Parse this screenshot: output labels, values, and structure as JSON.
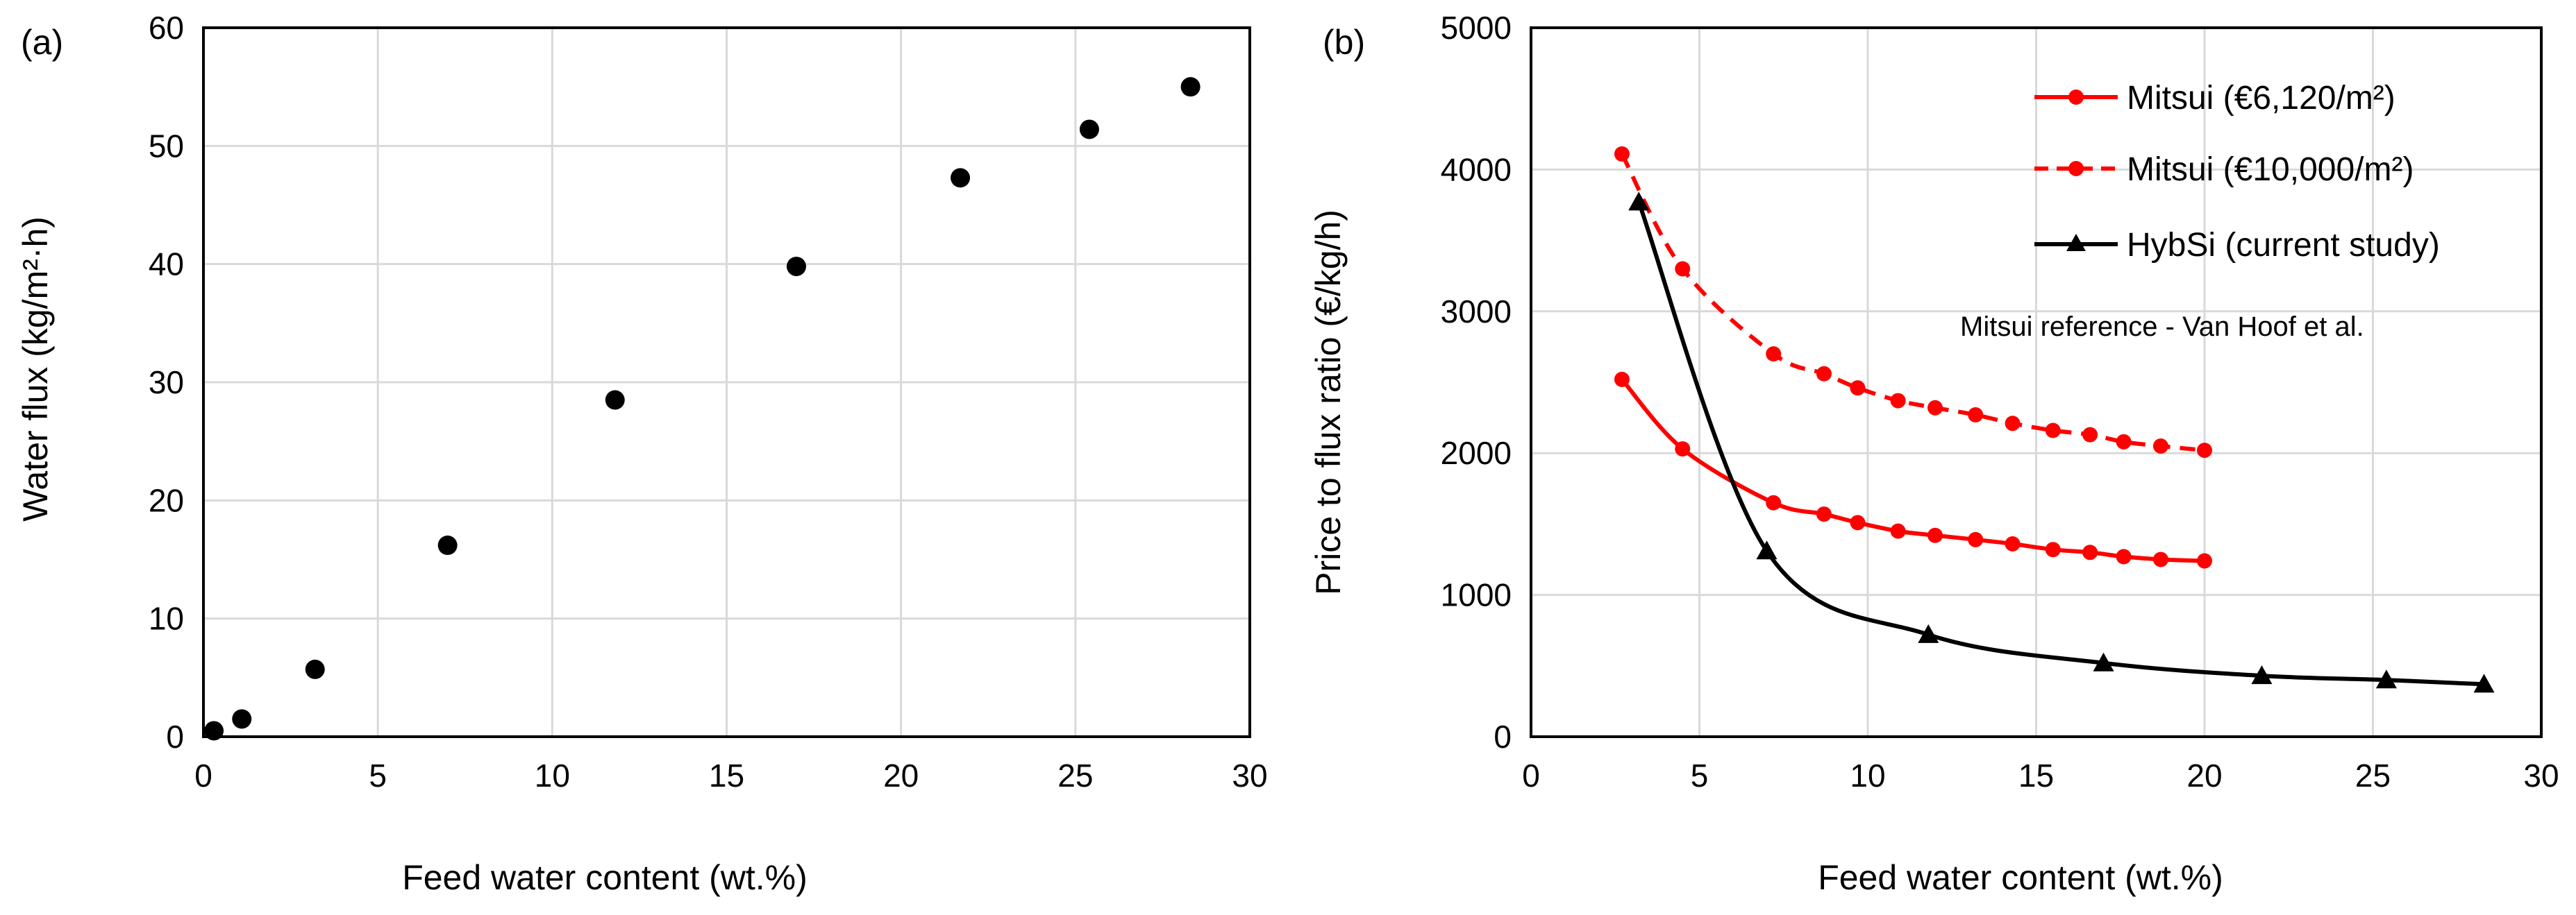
{
  "chart_data": [
    {
      "type": "scatter",
      "panel_label": "(a)",
      "xlabel": "Feed water content (wt.%)",
      "ylabel": "Water flux  (kg/m²·h)",
      "xlim": [
        0,
        30
      ],
      "ylim": [
        0,
        60
      ],
      "x_ticks": [
        "0",
        "5",
        "10",
        "15",
        "20",
        "25",
        "30"
      ],
      "y_ticks": [
        "0",
        "10",
        "20",
        "30",
        "40",
        "50",
        "60"
      ],
      "grid": true,
      "series": [
        {
          "name": "Water flux",
          "color": "#000000",
          "marker": "circle",
          "x": [
            0.3,
            1.1,
            3.2,
            7.0,
            11.8,
            17.0,
            21.7,
            25.4,
            28.3
          ],
          "y": [
            0.5,
            1.5,
            5.7,
            16.2,
            28.5,
            39.8,
            47.3,
            51.4,
            55.0
          ]
        }
      ]
    },
    {
      "type": "line",
      "panel_label": "(b)",
      "xlabel": "Feed water content (wt.%)",
      "ylabel": "Price to flux ratio (€/kg/h)",
      "xlim": [
        0,
        30
      ],
      "ylim": [
        0,
        5000
      ],
      "x_ticks": [
        "0",
        "5",
        "10",
        "15",
        "20",
        "25",
        "30"
      ],
      "y_ticks": [
        "0",
        "1000",
        "2000",
        "3000",
        "4000",
        "5000"
      ],
      "grid": true,
      "legend_position": "top-right",
      "annotation": "Mitsui reference - Van Hoof et al.",
      "series": [
        {
          "name": "Mitsui (€6,120/m²)",
          "color": "#ff0000",
          "line": "solid",
          "marker": "circle",
          "x": [
            2.7,
            4.5,
            7.2,
            8.7,
            9.7,
            10.9,
            12.0,
            13.2,
            14.3,
            15.5,
            16.6,
            17.6,
            18.7,
            20.0
          ],
          "y": [
            2520,
            2030,
            1650,
            1570,
            1510,
            1450,
            1420,
            1390,
            1360,
            1320,
            1300,
            1270,
            1250,
            1240
          ]
        },
        {
          "name": "Mitsui (€10,000/m²)",
          "color": "#ff0000",
          "line": "dashed",
          "marker": "circle",
          "x": [
            2.7,
            4.5,
            7.2,
            8.7,
            9.7,
            10.9,
            12.0,
            13.2,
            14.3,
            15.5,
            16.6,
            17.6,
            18.7,
            20.0
          ],
          "y": [
            4110,
            3300,
            2700,
            2560,
            2460,
            2370,
            2320,
            2270,
            2210,
            2160,
            2130,
            2080,
            2050,
            2020
          ]
        },
        {
          "name": "HybSi (current study)",
          "color": "#000000",
          "line": "solid",
          "marker": "triangle",
          "x": [
            3.2,
            7.0,
            11.8,
            17.0,
            21.7,
            25.4,
            28.3
          ],
          "y": [
            3770,
            1310,
            720,
            520,
            430,
            400,
            370
          ]
        }
      ]
    }
  ]
}
